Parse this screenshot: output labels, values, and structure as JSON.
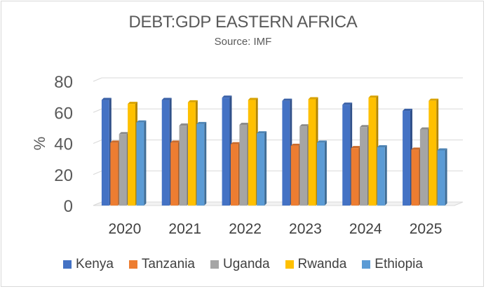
{
  "chart_data": {
    "type": "bar",
    "title": "DEBT:GDP EASTERN AFRICA",
    "subtitle": "Source: IMF",
    "ylabel": "%",
    "xlabel": "",
    "ylim": [
      0,
      80
    ],
    "yticks": [
      "0",
      "20",
      "40",
      "60",
      "80"
    ],
    "grid": true,
    "legend_position": "bottom",
    "categories": [
      "2020",
      "2021",
      "2022",
      "2023",
      "2024",
      "2025"
    ],
    "series": [
      {
        "name": "Kenya",
        "color": "#4472c4",
        "values": [
          68,
          68,
          69.5,
          67.5,
          65,
          61
        ]
      },
      {
        "name": "Tanzania",
        "color": "#ed7d31",
        "values": [
          40.5,
          40.5,
          39.5,
          38.5,
          37,
          36
        ]
      },
      {
        "name": "Uganda",
        "color": "#a5a5a5",
        "values": [
          46,
          51.5,
          52,
          51,
          50.5,
          49
        ]
      },
      {
        "name": "Rwanda",
        "color": "#ffc000",
        "values": [
          65.5,
          66.5,
          68,
          68.5,
          69.5,
          67.5
        ]
      },
      {
        "name": "Ethiopia",
        "color": "#5b9bd5",
        "values": [
          53.5,
          52.5,
          46.5,
          40.5,
          37.5,
          35.5
        ]
      }
    ]
  }
}
